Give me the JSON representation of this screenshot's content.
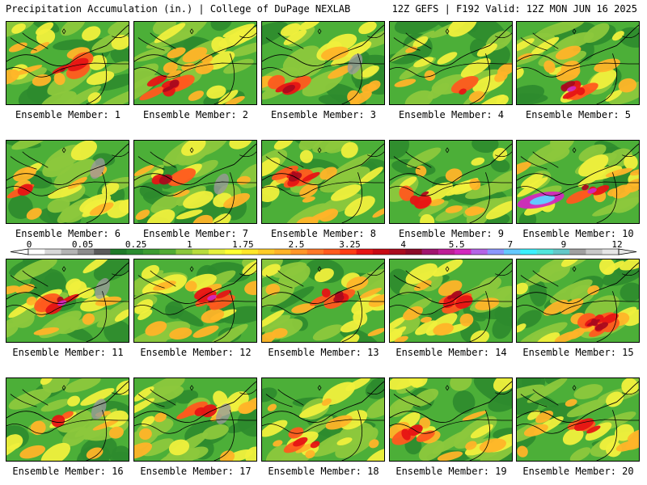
{
  "header": {
    "left": "Precipitation Accumulation (in.) | College of DuPage NEXLAB",
    "right": "12Z GEFS | F192 Valid: 12Z MON JUN 16 2025"
  },
  "panels": [
    {
      "label": "Ensemble Member: 1"
    },
    {
      "label": "Ensemble Member: 2"
    },
    {
      "label": "Ensemble Member: 3"
    },
    {
      "label": "Ensemble Member: 4"
    },
    {
      "label": "Ensemble Member: 5"
    },
    {
      "label": "Ensemble Member: 6"
    },
    {
      "label": "Ensemble Member: 7"
    },
    {
      "label": "Ensemble Member: 8"
    },
    {
      "label": "Ensemble Member: 9"
    },
    {
      "label": "Ensemble Member: 10"
    },
    {
      "label": "Ensemble Member: 11"
    },
    {
      "label": "Ensemble Member: 12"
    },
    {
      "label": "Ensemble Member: 13"
    },
    {
      "label": "Ensemble Member: 14"
    },
    {
      "label": "Ensemble Member: 15"
    },
    {
      "label": "Ensemble Member: 16"
    },
    {
      "label": "Ensemble Member: 17"
    },
    {
      "label": "Ensemble Member: 18"
    },
    {
      "label": "Ensemble Member: 19"
    },
    {
      "label": "Ensemble Member: 20"
    }
  ],
  "legend": {
    "tick_labels": [
      "0",
      "0.05",
      "0.25",
      "1",
      "1.75",
      "2.5",
      "3.25",
      "4",
      "5.5",
      "7",
      "9",
      "12"
    ],
    "colors": [
      "#ffffff",
      "#d8d8d8",
      "#b4b4b4",
      "#8c8c8c",
      "#5a5a5a",
      "#1e7a28",
      "#2a8c30",
      "#3c9c32",
      "#52ac34",
      "#8cc83c",
      "#b8dc3c",
      "#e6f03c",
      "#ffff32",
      "#ffe628",
      "#ffcc28",
      "#ffb428",
      "#ff9628",
      "#ff7828",
      "#ff5a1e",
      "#ff3c14",
      "#e61414",
      "#c80a14",
      "#aa0a1e",
      "#8c0a28",
      "#a0146e",
      "#be1e96",
      "#d228be",
      "#b464e6",
      "#8c96ff",
      "#64c8ff",
      "#3cf0ff",
      "#50e6dc",
      "#64c8c8",
      "#a0a0a0",
      "#c8c8c8",
      "#e6e6e6"
    ],
    "palette": {
      "dark_green": "#2e8b2e",
      "green": "#4caf38",
      "light_green": "#8cc83c",
      "yellow": "#f0f03c",
      "orange": "#ffb428",
      "red_orange": "#ff5a1e",
      "red": "#e61414",
      "dark_red": "#aa0a1e",
      "magenta": "#d228be",
      "light_blue": "#64c8ff",
      "gray": "#9a9a9a"
    }
  }
}
